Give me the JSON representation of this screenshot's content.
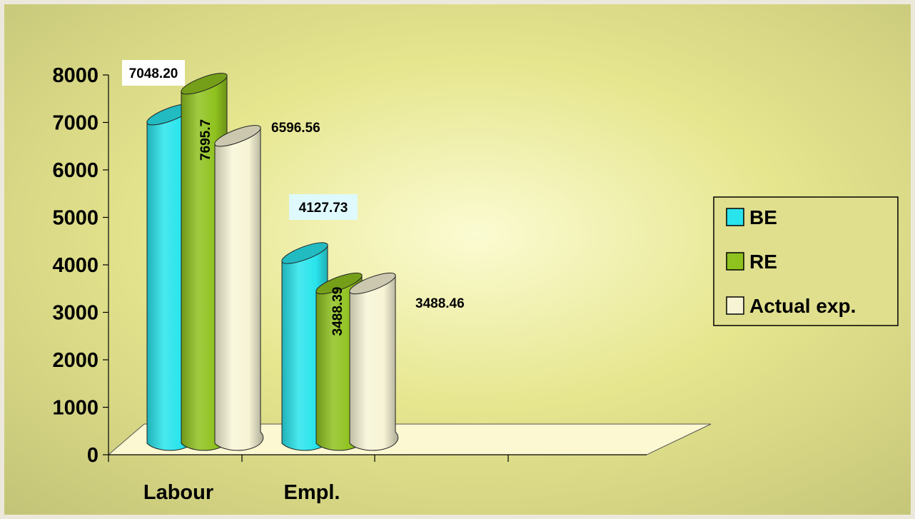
{
  "chart_data": {
    "type": "bar",
    "title": "",
    "xlabel": "",
    "ylabel": "",
    "categories": [
      "Labour",
      "Empl."
    ],
    "ylim": [
      0,
      8000
    ],
    "yticks": [
      "0",
      "1000",
      "2000",
      "3000",
      "4000",
      "5000",
      "6000",
      "7000",
      "8000"
    ],
    "series": [
      {
        "name": "BE",
        "values": [
          7048.2,
          4127.73
        ],
        "color": "#29e4ec"
      },
      {
        "name": "RE",
        "values": [
          7695.7,
          3488.39
        ],
        "color": "#8fc21f"
      },
      {
        "name": "Actual exp.",
        "values": [
          6596.56,
          3488.46
        ],
        "color": "#f7f4d6"
      }
    ],
    "data_labels": [
      [
        "7048.20",
        "4127.73"
      ],
      [
        "7695.7",
        "3488.39"
      ],
      [
        "6596.56",
        "3488.46"
      ]
    ],
    "grid": false,
    "legend_position": "right",
    "style": "3d-cylinder",
    "background_color": "#dede8a",
    "floor_color": "#fbf8d2"
  }
}
